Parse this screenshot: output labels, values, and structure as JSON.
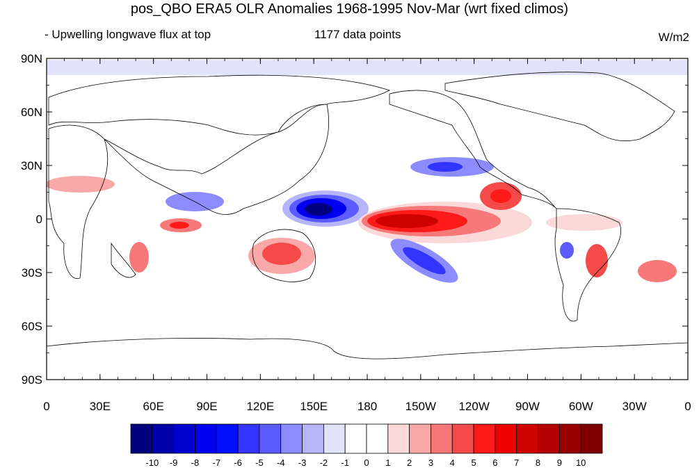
{
  "title": "pos_QBO ERA5 OLR Anomalies 1968-1995 Nov-Mar (wrt fixed climos)",
  "subtitle_left": "- Upwelling longwave flux at top",
  "subtitle_center": "1177 data points",
  "subtitle_right": "W/m2",
  "lat_labels": [
    "90N",
    "60N",
    "30N",
    "0",
    "30S",
    "60S",
    "90S"
  ],
  "lon_labels": [
    "0",
    "30E",
    "60E",
    "90E",
    "120E",
    "150E",
    "180",
    "150W",
    "120W",
    "90W",
    "60W",
    "30W",
    "0"
  ],
  "colorbar": {
    "colors": [
      "#00007f",
      "#0000a8",
      "#0000cf",
      "#0000f0",
      "#0010ff",
      "#3434ff",
      "#5b5bff",
      "#8c8cff",
      "#b5b5f8",
      "#e2e2fa",
      "#ffffff",
      "#ffffff",
      "#fbd9d9",
      "#f9a8a8",
      "#f67878",
      "#f44a4a",
      "#ff1a1a",
      "#ef0000",
      "#cf0000",
      "#b30000",
      "#990000",
      "#7f0000"
    ],
    "labels": [
      "-10",
      "-9",
      "-8",
      "-7",
      "-6",
      "-5",
      "-4",
      "-3",
      "-2",
      "-1",
      "0",
      "1",
      "2",
      "3",
      "4",
      "5",
      "6",
      "7",
      "8",
      "9",
      "10"
    ]
  }
}
